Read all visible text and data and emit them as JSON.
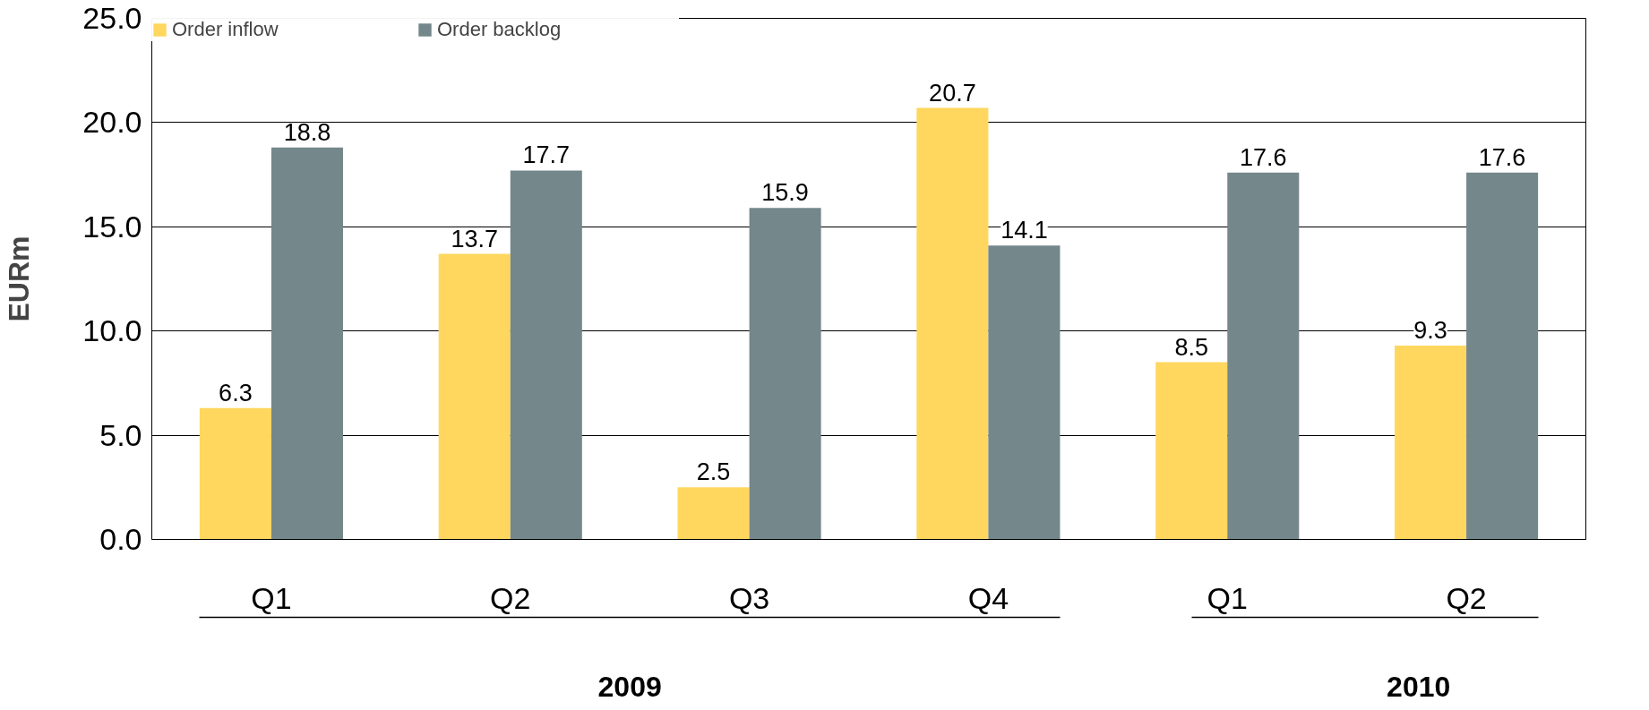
{
  "chart_data": {
    "type": "bar",
    "ylabel": "EURm",
    "categories": [
      "Q1",
      "Q2",
      "Q3",
      "Q4",
      "Q1",
      "Q2"
    ],
    "series": [
      {
        "name": "Order inflow",
        "color": "#ffd75e",
        "values": [
          6.3,
          13.7,
          2.5,
          20.7,
          8.5,
          9.3
        ]
      },
      {
        "name": "Order backlog",
        "color": "#74878b",
        "values": [
          18.8,
          17.7,
          15.9,
          14.1,
          17.6,
          17.6
        ]
      }
    ],
    "ylim": [
      0,
      25
    ],
    "yticks": [
      {
        "value": 0,
        "label": "0.0"
      },
      {
        "value": 5,
        "label": "5.0"
      },
      {
        "value": 10,
        "label": "10.0"
      },
      {
        "value": 15,
        "label": "15.0"
      },
      {
        "value": 20,
        "label": "20.0"
      },
      {
        "value": 25,
        "label": "25.0"
      }
    ],
    "grid": "y",
    "legend": "top left",
    "data_labels": true,
    "annotations": [
      "2009",
      "2010"
    ]
  }
}
